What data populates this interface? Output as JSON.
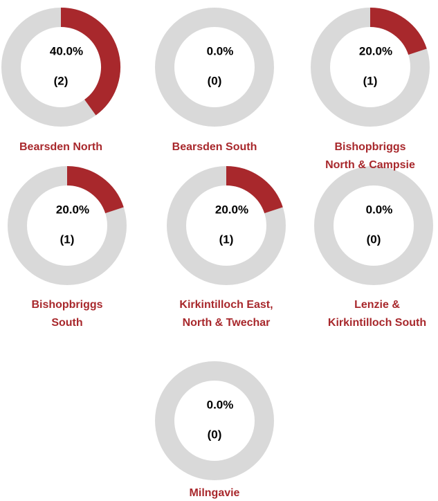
{
  "chart_data": [
    {
      "type": "donut",
      "title": "Bearsden North",
      "values": [
        40
      ],
      "value_labels": [
        "40.0%"
      ],
      "counts": [
        2
      ],
      "count_labels": [
        "(2)"
      ],
      "color": "#a8282c",
      "track_color": "#d9d9d9"
    },
    {
      "type": "donut",
      "title": "Bearsden South",
      "values": [
        0
      ],
      "value_labels": [
        "0.0%"
      ],
      "counts": [
        0
      ],
      "count_labels": [
        "(0)"
      ],
      "color": "#a8282c",
      "track_color": "#d9d9d9"
    },
    {
      "type": "donut",
      "title": "Bishopbriggs\nNorth & Campsie",
      "values": [
        20
      ],
      "value_labels": [
        "20.0%"
      ],
      "counts": [
        1
      ],
      "count_labels": [
        "(1)"
      ],
      "color": "#a8282c",
      "track_color": "#d9d9d9"
    },
    {
      "type": "donut",
      "title": "Bishopbriggs\nSouth",
      "values": [
        20
      ],
      "value_labels": [
        "20.0%"
      ],
      "counts": [
        1
      ],
      "count_labels": [
        "(1)"
      ],
      "color": "#a8282c",
      "track_color": "#d9d9d9"
    },
    {
      "type": "donut",
      "title": "Kirkintilloch East,\nNorth & Twechar",
      "values": [
        20
      ],
      "value_labels": [
        "20.0%"
      ],
      "counts": [
        1
      ],
      "count_labels": [
        "(1)"
      ],
      "color": "#a8282c",
      "track_color": "#d9d9d9"
    },
    {
      "type": "donut",
      "title": "Lenzie &\nKirkintilloch South",
      "values": [
        0
      ],
      "value_labels": [
        "0.0%"
      ],
      "counts": [
        0
      ],
      "count_labels": [
        "(0)"
      ],
      "color": "#a8282c",
      "track_color": "#d9d9d9"
    },
    {
      "type": "donut",
      "title": "Milngavie",
      "values": [
        0
      ],
      "value_labels": [
        "0.0%"
      ],
      "counts": [
        0
      ],
      "count_labels": [
        "(0)"
      ],
      "color": "#a8282c",
      "track_color": "#d9d9d9"
    }
  ]
}
